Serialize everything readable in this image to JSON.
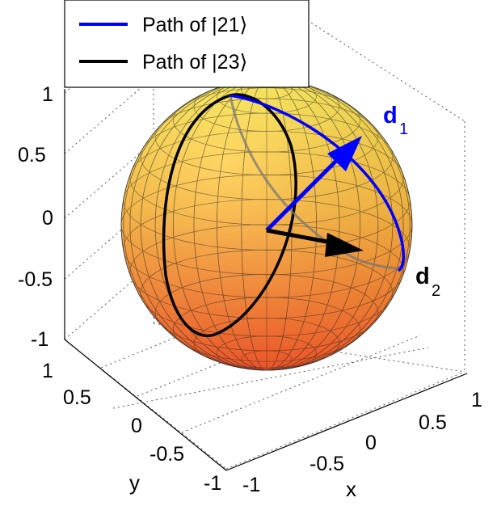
{
  "legend": {
    "entries": [
      {
        "label": "Path of |21⟩",
        "color": "#0000ff"
      },
      {
        "label": "Path of |23⟩",
        "color": "#000000"
      }
    ]
  },
  "axes": {
    "z_ticks": [
      "1",
      "0.5",
      "0",
      "-0.5",
      "-1"
    ],
    "y_ticks": [
      "1",
      "0.5",
      "0",
      "-0.5",
      "-1"
    ],
    "x_ticks": [
      "-1",
      "-0.5",
      "0",
      "0.5",
      "1"
    ],
    "y_label": "y",
    "x_label": "x",
    "grid": true
  },
  "vectors": {
    "d1": {
      "label": "d",
      "sub": "1",
      "color": "#0000ff"
    },
    "d2": {
      "label": "d",
      "sub": "2",
      "color": "#000000"
    }
  },
  "colors": {
    "sphere_top": "#ffe84a",
    "sphere_bottom": "#ff5a2a",
    "path_21": "#0000ff",
    "path_23": "#000000"
  }
}
